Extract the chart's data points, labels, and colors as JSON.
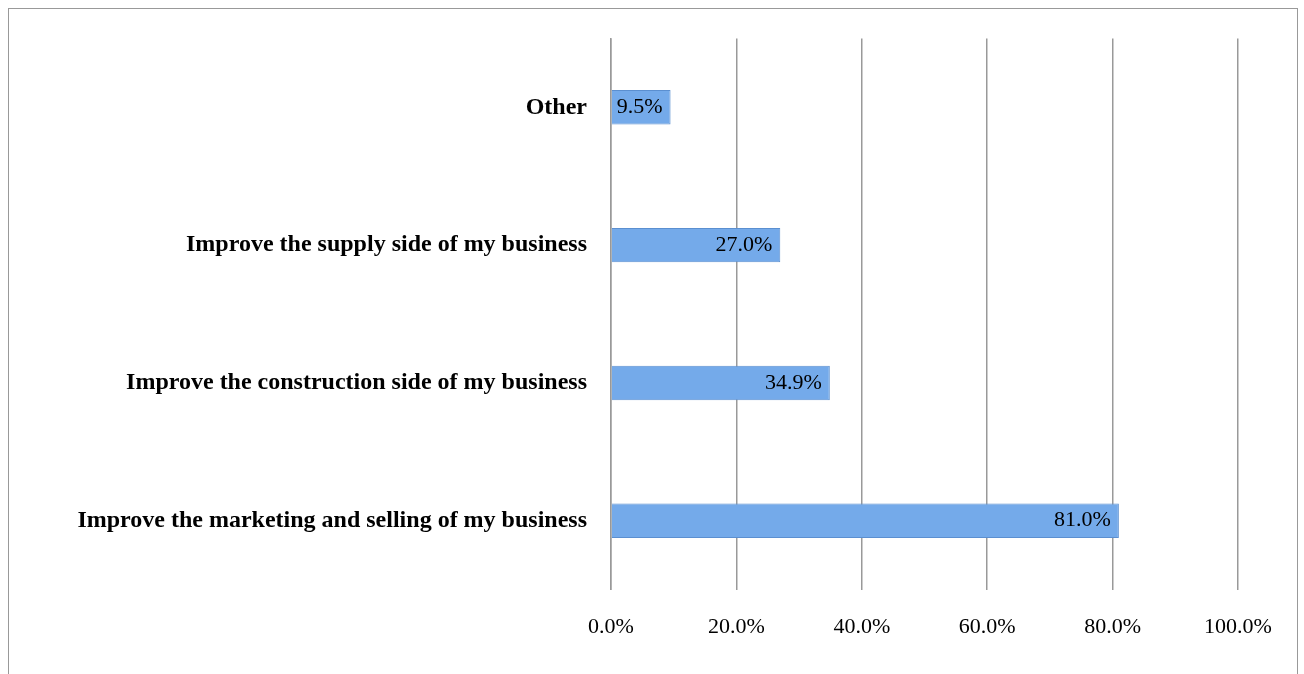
{
  "chart_data": {
    "type": "bar",
    "orientation": "horizontal",
    "categories": [
      "Other",
      "Improve the supply side of my business",
      "Improve the construction side of my business",
      "Improve the marketing and selling of my business"
    ],
    "values": [
      9.5,
      27.0,
      34.9,
      81.0
    ],
    "value_labels": [
      "9.5%",
      "27.0%",
      "34.9%",
      "81.0%"
    ],
    "color": "#74aaea",
    "xlim": [
      0,
      100
    ],
    "xticks": [
      {
        "value": 0,
        "label": "0.0%"
      },
      {
        "value": 20,
        "label": "20.0%"
      },
      {
        "value": 40,
        "label": "40.0%"
      },
      {
        "value": 60,
        "label": "60.0%"
      },
      {
        "value": 80,
        "label": "80.0%"
      },
      {
        "value": 100,
        "label": "100.0%"
      }
    ],
    "grid": "x",
    "legend": false
  }
}
